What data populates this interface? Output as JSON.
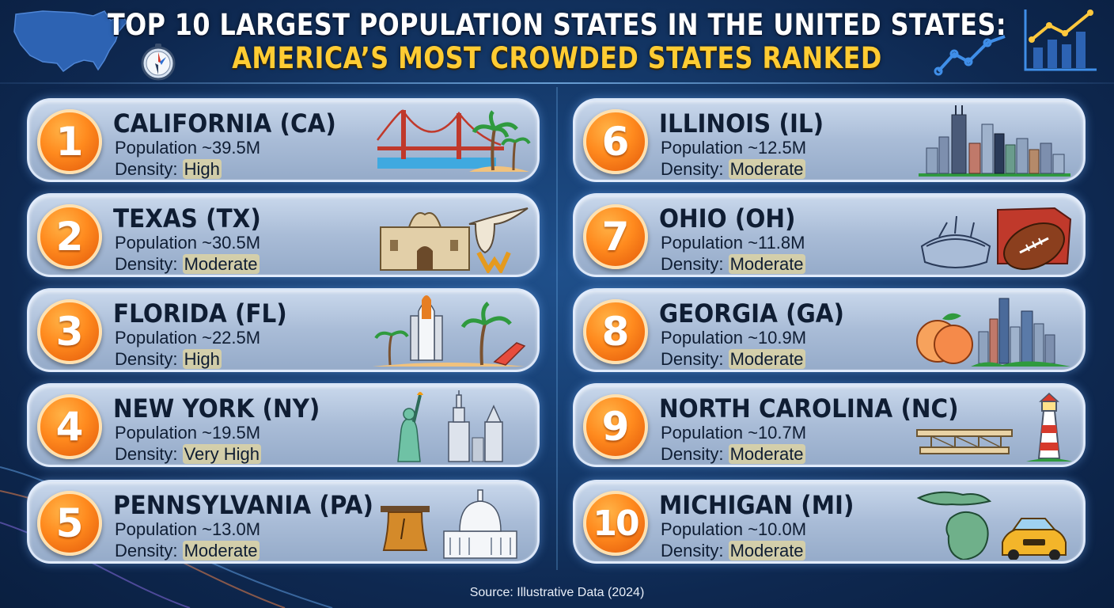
{
  "header": {
    "title_line1": "TOP 10 LARGEST POPULATION STATES IN THE UNITED STATES:",
    "title_line2": "AMERICA’S MOST CROWDED STATES RANKED"
  },
  "population_prefix": "Population ",
  "density_prefix": "Density: ",
  "states": [
    {
      "rank": "1",
      "name": "CALIFORNIA (CA)",
      "population": "~39.5M",
      "density": "High",
      "icon": "golden-gate-bridge-palm-trees-icon"
    },
    {
      "rank": "2",
      "name": "TEXAS (TX)",
      "population": "~30.5M",
      "density": "Moderate",
      "icon": "alamo-longhorn-skull-icon"
    },
    {
      "rank": "3",
      "name": "FLORIDA (FL)",
      "population": "~22.5M",
      "density": "High",
      "icon": "space-shuttle-palm-beach-icon"
    },
    {
      "rank": "4",
      "name": "NEW YORK (NY)",
      "population": "~19.5M",
      "density": "Very High",
      "icon": "statue-of-liberty-skyscrapers-icon"
    },
    {
      "rank": "5",
      "name": "PENNSYLVANIA (PA)",
      "population": "~13.0M",
      "density": "Moderate",
      "icon": "liberty-bell-capitol-icon"
    },
    {
      "rank": "6",
      "name": "ILLINOIS (IL)",
      "population": "~12.5M",
      "density": "Moderate",
      "icon": "chicago-skyline-icon"
    },
    {
      "rank": "7",
      "name": "OHIO (OH)",
      "population": "~11.8M",
      "density": "Moderate",
      "icon": "stadium-football-icon"
    },
    {
      "rank": "8",
      "name": "GEORGIA (GA)",
      "population": "~10.9M",
      "density": "Moderate",
      "icon": "peach-atlanta-skyline-icon"
    },
    {
      "rank": "9",
      "name": "NORTH CAROLINA (NC)",
      "population": "~10.7M",
      "density": "Moderate",
      "icon": "biplane-lighthouse-icon"
    },
    {
      "rank": "10",
      "name": "MICHIGAN (MI)",
      "population": "~10.0M",
      "density": "Moderate",
      "icon": "michigan-map-car-icon"
    }
  ],
  "source": "Source: Illustrative Data (2024)",
  "colors": {
    "background": "#163d70",
    "title_primary": "#ffffff",
    "title_accent": "#ffcc33",
    "badge": "#ff8a1e",
    "card": "#b3c5de"
  }
}
